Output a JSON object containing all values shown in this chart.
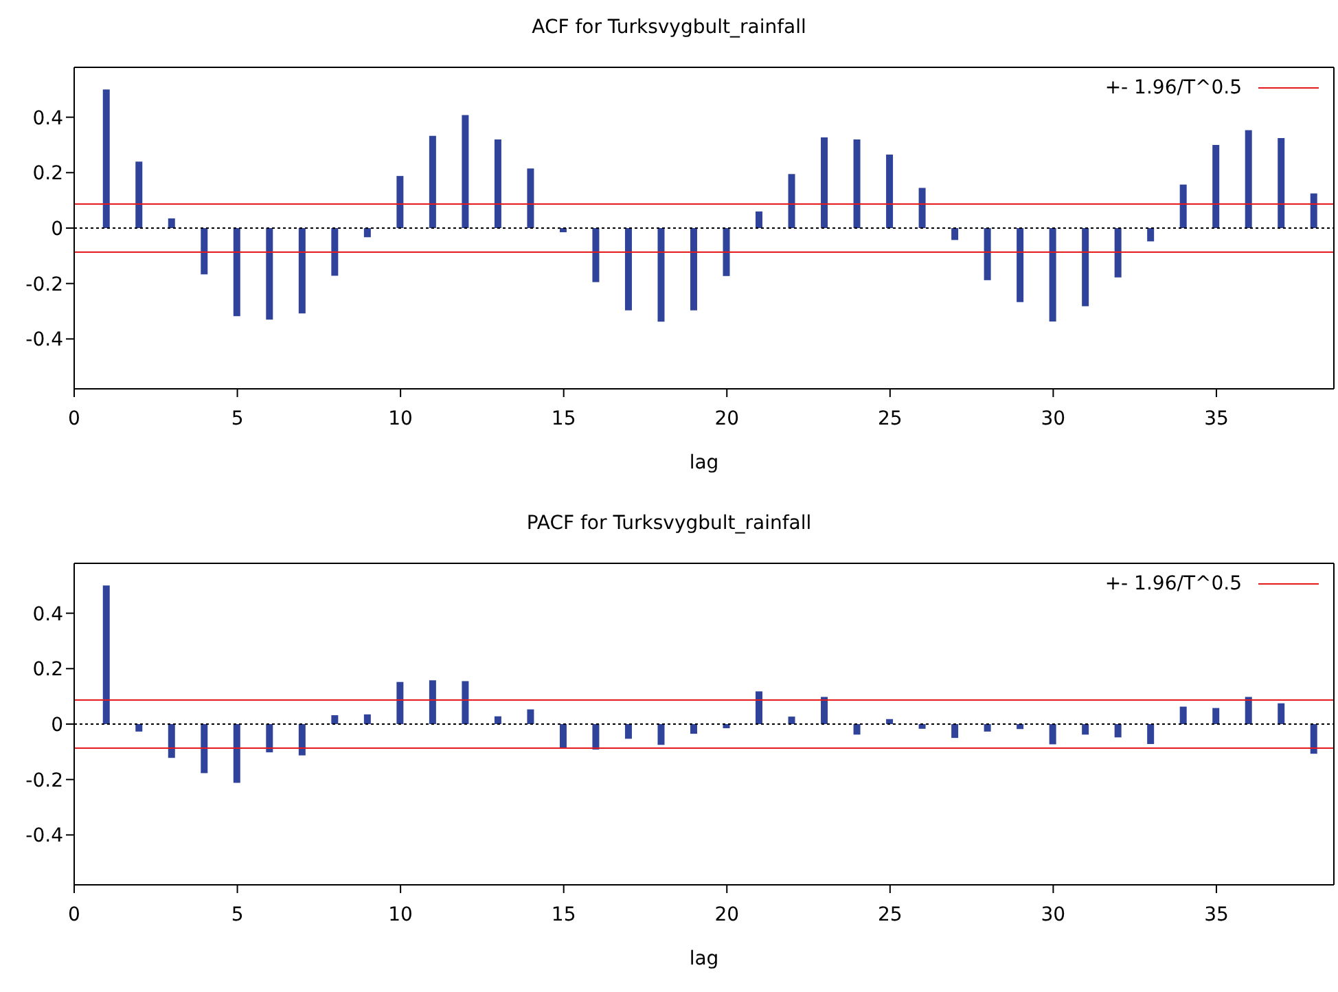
{
  "chart_data": [
    {
      "type": "bar",
      "title": "ACF for Turksvygbult_rainfall",
      "xlabel": "lag",
      "x": [
        1,
        2,
        3,
        4,
        5,
        6,
        7,
        8,
        9,
        10,
        11,
        12,
        13,
        14,
        15,
        16,
        17,
        18,
        19,
        20,
        21,
        22,
        23,
        24,
        25,
        26,
        27,
        28,
        29,
        30,
        31,
        32,
        33,
        34,
        35,
        36,
        37,
        38
      ],
      "series": [
        {
          "color": "#30439b",
          "values": [
            0.5,
            0.24,
            0.035,
            -0.167,
            -0.318,
            -0.33,
            -0.308,
            -0.172,
            -0.033,
            0.188,
            0.333,
            0.408,
            0.32,
            0.215,
            -0.015,
            -0.195,
            -0.297,
            -0.338,
            -0.297,
            -0.173,
            0.06,
            0.195,
            0.327,
            0.32,
            0.265,
            0.145,
            -0.043,
            -0.188,
            -0.267,
            -0.337,
            -0.282,
            -0.178,
            -0.048,
            0.157,
            0.3,
            0.353,
            0.325,
            0.125
          ]
        }
      ],
      "xlim": [
        0,
        38.6
      ],
      "xticks": [
        0,
        5,
        10,
        15,
        20,
        25,
        30,
        35
      ],
      "ylim": [
        -0.58,
        0.58
      ],
      "yticks": [
        -0.4,
        -0.2,
        0,
        0.2,
        0.4
      ],
      "ref_lines": [
        {
          "axis": "y",
          "value": 0,
          "color": "#000000",
          "line_style": "dotted"
        },
        {
          "axis": "y",
          "value": 0.087,
          "label": "+- 1.96/T^0.5",
          "color": "#e41a1c",
          "line_style": "solid"
        },
        {
          "axis": "y",
          "value": -0.087,
          "color": "#e41a1c",
          "line_style": "solid"
        }
      ],
      "legend": "top right",
      "grid": false
    },
    {
      "type": "bar",
      "title": "PACF for Turksvygbult_rainfall",
      "xlabel": "lag",
      "x": [
        1,
        2,
        3,
        4,
        5,
        6,
        7,
        8,
        9,
        10,
        11,
        12,
        13,
        14,
        15,
        16,
        17,
        18,
        19,
        20,
        21,
        22,
        23,
        24,
        25,
        26,
        27,
        28,
        29,
        30,
        31,
        32,
        33,
        34,
        35,
        36,
        37,
        38
      ],
      "series": [
        {
          "color": "#30439b",
          "values": [
            0.5,
            -0.027,
            -0.122,
            -0.177,
            -0.212,
            -0.102,
            -0.113,
            0.032,
            0.035,
            0.152,
            0.158,
            0.155,
            0.028,
            0.053,
            -0.087,
            -0.092,
            -0.053,
            -0.075,
            -0.035,
            -0.015,
            0.118,
            0.027,
            0.098,
            -0.038,
            0.018,
            -0.017,
            -0.05,
            -0.027,
            -0.018,
            -0.073,
            -0.038,
            -0.048,
            -0.072,
            0.063,
            0.058,
            0.098,
            0.075,
            -0.107
          ]
        }
      ],
      "xlim": [
        0,
        38.6
      ],
      "xticks": [
        0,
        5,
        10,
        15,
        20,
        25,
        30,
        35
      ],
      "ylim": [
        -0.58,
        0.58
      ],
      "yticks": [
        -0.4,
        -0.2,
        0,
        0.2,
        0.4
      ],
      "ref_lines": [
        {
          "axis": "y",
          "value": 0,
          "color": "#000000",
          "line_style": "dotted"
        },
        {
          "axis": "y",
          "value": 0.087,
          "label": "+- 1.96/T^0.5",
          "color": "#e41a1c",
          "line_style": "solid"
        },
        {
          "axis": "y",
          "value": -0.087,
          "color": "#e41a1c",
          "line_style": "solid"
        }
      ],
      "legend": "top right",
      "grid": false
    }
  ]
}
